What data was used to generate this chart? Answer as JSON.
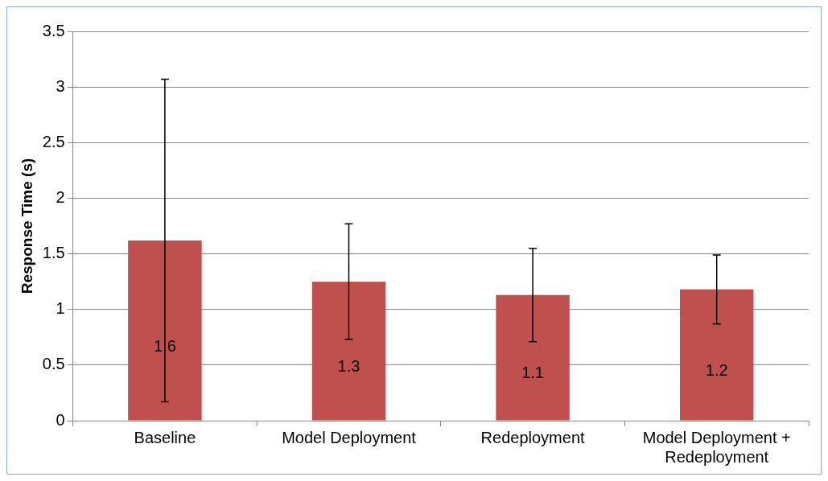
{
  "chart_data": {
    "type": "bar",
    "ylabel": "Response Time (s)",
    "categories": [
      "Baseline",
      "Model Deployment",
      "Redeployment",
      "Model Deployment + Redeployment"
    ],
    "values": [
      1.62,
      1.25,
      1.13,
      1.18
    ],
    "errors": [
      1.45,
      0.52,
      0.42,
      0.31
    ],
    "value_labels": [
      "1.6",
      "1.3",
      "1.1",
      "1.2"
    ],
    "color": "#c0504d",
    "ylim": [
      0,
      3.5
    ],
    "yticks": [
      0,
      0.5,
      1,
      1.5,
      2,
      2.5,
      3,
      3.5
    ],
    "grid": "y",
    "legend": false
  }
}
